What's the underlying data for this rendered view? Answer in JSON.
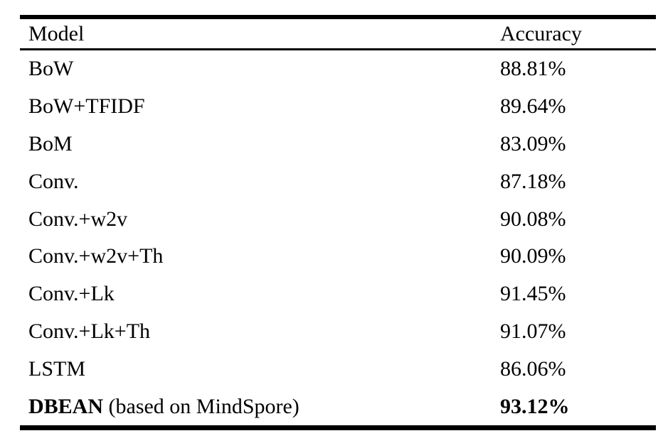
{
  "table": {
    "header": {
      "model": "Model",
      "accuracy": "Accuracy"
    },
    "rows": [
      {
        "model": "BoW",
        "suffix": "",
        "accuracy": "88.81%"
      },
      {
        "model": "BoW+TFIDF",
        "suffix": "",
        "accuracy": "89.64%"
      },
      {
        "model": "BoM",
        "suffix": "",
        "accuracy": "83.09%"
      },
      {
        "model": "Conv.",
        "suffix": "",
        "accuracy": "87.18%"
      },
      {
        "model": "Conv.+w2v",
        "suffix": "",
        "accuracy": "90.08%"
      },
      {
        "model": "Conv.+w2v+Th",
        "suffix": "",
        "accuracy": "90.09%"
      },
      {
        "model": "Conv.+Lk",
        "suffix": "",
        "accuracy": "91.45%"
      },
      {
        "model": "Conv.+Lk+Th",
        "suffix": "",
        "accuracy": "91.07%"
      },
      {
        "model": "LSTM",
        "suffix": "",
        "accuracy": "86.06%"
      },
      {
        "model": "DBEAN",
        "suffix": " (based on MindSpore)",
        "accuracy": "93.12%"
      }
    ],
    "colors": {
      "text": "#000000",
      "rule": "#000000",
      "background": "#ffffff"
    }
  },
  "chart_data": {
    "type": "table",
    "columns": [
      "Model",
      "Accuracy"
    ],
    "rows": [
      [
        "BoW",
        "88.81%"
      ],
      [
        "BoW+TFIDF",
        "89.64%"
      ],
      [
        "BoM",
        "83.09%"
      ],
      [
        "Conv.",
        "87.18%"
      ],
      [
        "Conv.+w2v",
        "90.08%"
      ],
      [
        "Conv.+w2v+Th",
        "90.09%"
      ],
      [
        "Conv.+Lk",
        "91.45%"
      ],
      [
        "Conv.+Lk+Th",
        "91.07%"
      ],
      [
        "LSTM",
        "86.06%"
      ],
      [
        "DBEAN (based on MindSpore)",
        "93.12%"
      ]
    ],
    "accuracy_values_percent": [
      88.81,
      89.64,
      83.09,
      87.18,
      90.08,
      90.09,
      91.45,
      91.07,
      86.06,
      93.12
    ],
    "emphasized_row": "DBEAN (based on MindSpore)"
  }
}
